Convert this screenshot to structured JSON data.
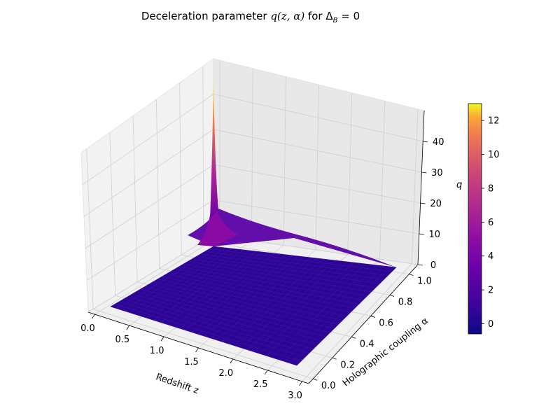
{
  "chart_data": {
    "type": "surface",
    "title": {
      "prefix": "Deceleration parameter ",
      "math": "q(z, α)",
      "middle": " for ",
      "tail": "Δ",
      "sub": "B",
      "suffix": " = 0"
    },
    "xlabel": "Redshift z",
    "ylabel": "Holographic coupling α",
    "zlabel": "q",
    "xlim": [
      0,
      3
    ],
    "ylim": [
      0,
      1
    ],
    "zlim": [
      0,
      50
    ],
    "x_ticks": [
      "0.0",
      "0.5",
      "1.0",
      "1.5",
      "2.0",
      "2.5",
      "3.0"
    ],
    "y_ticks": [
      "0.0",
      "0.2",
      "0.4",
      "0.6",
      "0.8",
      "1.0"
    ],
    "z_ticks": [
      "0",
      "10",
      "20",
      "30",
      "40"
    ],
    "colormap": "plasma",
    "colorbar": {
      "range": [
        -0.6,
        13
      ],
      "ticks": [
        "0",
        "2",
        "4",
        "6",
        "8",
        "10",
        "12"
      ],
      "placement": "right"
    },
    "surface_summary": {
      "floor_value": 0.3,
      "peak": {
        "z": 0,
        "alpha": 1.0,
        "q": 49
      },
      "grid": "on"
    }
  }
}
